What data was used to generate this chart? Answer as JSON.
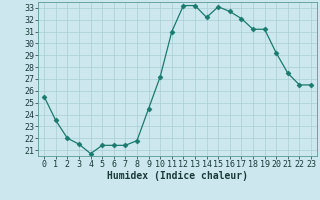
{
  "x": [
    0,
    1,
    2,
    3,
    4,
    5,
    6,
    7,
    8,
    9,
    10,
    11,
    12,
    13,
    14,
    15,
    16,
    17,
    18,
    19,
    20,
    21,
    22,
    23
  ],
  "y": [
    25.5,
    23.5,
    22.0,
    21.5,
    20.7,
    21.4,
    21.4,
    21.4,
    21.8,
    24.5,
    27.2,
    31.0,
    33.2,
    33.2,
    32.2,
    33.1,
    32.7,
    32.1,
    31.2,
    31.2,
    29.2,
    27.5,
    26.5,
    26.5
  ],
  "line_color": "#1a7a6e",
  "marker": "D",
  "marker_size": 2.5,
  "bg_color": "#cce8ee",
  "grid_color": "#aacdd4",
  "xlabel": "Humidex (Indice chaleur)",
  "xlim": [
    -0.5,
    23.5
  ],
  "ylim": [
    20.5,
    33.5
  ],
  "yticks": [
    21,
    22,
    23,
    24,
    25,
    26,
    27,
    28,
    29,
    30,
    31,
    32,
    33
  ],
  "xticks": [
    0,
    1,
    2,
    3,
    4,
    5,
    6,
    7,
    8,
    9,
    10,
    11,
    12,
    13,
    14,
    15,
    16,
    17,
    18,
    19,
    20,
    21,
    22,
    23
  ],
  "tick_fontsize": 6.0,
  "xlabel_fontsize": 7.0
}
